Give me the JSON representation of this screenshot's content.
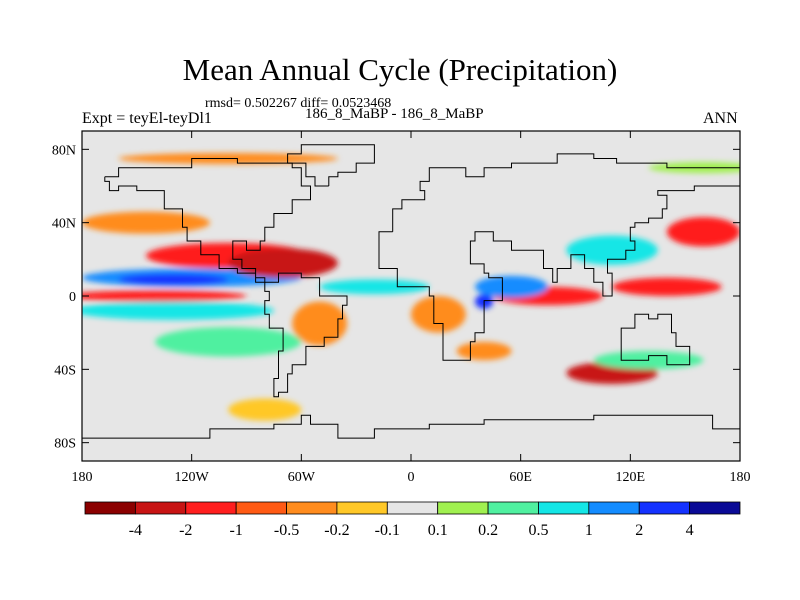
{
  "title": "Mean Annual Cycle (Precipitation)",
  "stats": "rmsd= 0.502267 diff= 0.0523468",
  "left_label": "Expt = teyEl-teyDl1",
  "center_label": "186_8_MaBP - 186_8_MaBP",
  "right_label": "ANN",
  "chart_data": {
    "type": "heatmap",
    "title": "Mean Annual Cycle (Precipitation)",
    "projection": "cylindrical equidistant",
    "xlim": [
      -180,
      180
    ],
    "ylim": [
      -90,
      90
    ],
    "x_ticks": [
      {
        "value": -180,
        "label": "180"
      },
      {
        "value": -120,
        "label": "120W"
      },
      {
        "value": -60,
        "label": "60W"
      },
      {
        "value": 0,
        "label": "0"
      },
      {
        "value": 60,
        "label": "60E"
      },
      {
        "value": 120,
        "label": "120E"
      },
      {
        "value": 180,
        "label": "180"
      }
    ],
    "y_ticks": [
      {
        "value": 80,
        "label": "80N"
      },
      {
        "value": 40,
        "label": "40N"
      },
      {
        "value": 0,
        "label": "0"
      },
      {
        "value": -40,
        "label": "40S"
      },
      {
        "value": -80,
        "label": "80S"
      }
    ],
    "colorbar": {
      "labels": [
        "-4",
        "-2",
        "-1",
        "-0.5",
        "-0.2",
        "-0.1",
        "0.1",
        "0.2",
        "0.5",
        "1",
        "2",
        "4"
      ],
      "colors": [
        "#8b0000",
        "#c81414",
        "#ff1e1e",
        "#ff5a14",
        "#ff8c1e",
        "#ffc828",
        "#e6e6e6",
        "#a0f050",
        "#50f0a0",
        "#14e6e6",
        "#148cff",
        "#1432ff",
        "#0a0a96"
      ]
    },
    "features": [
      {
        "name": "tropical-pacific-north-positive",
        "lon": -120,
        "lat": 10,
        "dlon": 60,
        "dlat": 5,
        "level": 10
      },
      {
        "name": "tropical-pacific-north-core",
        "lon": -130,
        "lat": 9,
        "dlon": 30,
        "dlat": 3,
        "level": 11
      },
      {
        "name": "equatorial-pacific-negative",
        "lon": -140,
        "lat": 0,
        "dlon": 50,
        "dlat": 3,
        "level": 2
      },
      {
        "name": "south-pacific-positive",
        "lon": -130,
        "lat": -8,
        "dlon": 55,
        "dlat": 5,
        "level": 9
      },
      {
        "name": "north-pacific-negative",
        "lon": -100,
        "lat": 22,
        "dlon": 45,
        "dlat": 7,
        "level": 2
      },
      {
        "name": "central-america-negative",
        "lon": -70,
        "lat": 18,
        "dlon": 30,
        "dlat": 8,
        "level": 1
      },
      {
        "name": "mid-latitude-pacific-orange",
        "lon": -145,
        "lat": 40,
        "dlon": 35,
        "dlat": 6,
        "level": 4
      },
      {
        "name": "atlantic-itcz-positive",
        "lon": -20,
        "lat": 5,
        "dlon": 30,
        "dlat": 4,
        "level": 9
      },
      {
        "name": "south-america-negative",
        "lon": -50,
        "lat": -15,
        "dlon": 15,
        "dlat": 12,
        "level": 4
      },
      {
        "name": "africa-negative",
        "lon": 15,
        "lat": -10,
        "dlon": 15,
        "dlat": 10,
        "level": 4
      },
      {
        "name": "indian-ocean-negative",
        "lon": 75,
        "lat": 0,
        "dlon": 30,
        "dlat": 5,
        "level": 2
      },
      {
        "name": "indian-ocean-positive",
        "lon": 55,
        "lat": 5,
        "dlon": 20,
        "dlat": 6,
        "level": 10
      },
      {
        "name": "arabian-sea-core",
        "lon": 40,
        "lat": -3,
        "dlon": 5,
        "dlat": 4,
        "level": 11
      },
      {
        "name": "south-indian-negative",
        "lon": 110,
        "lat": -42,
        "dlon": 25,
        "dlat": 6,
        "level": 1
      },
      {
        "name": "west-pacific-negative",
        "lon": 140,
        "lat": 5,
        "dlon": 30,
        "dlat": 5,
        "level": 2
      },
      {
        "name": "north-pacific-west-negative",
        "lon": 160,
        "lat": 35,
        "dlon": 20,
        "dlat": 8,
        "level": 2
      },
      {
        "name": "east-asia-positive",
        "lon": 110,
        "lat": 25,
        "dlon": 25,
        "dlat": 8,
        "level": 9
      },
      {
        "name": "south-pacific-east-positive",
        "lon": -100,
        "lat": -25,
        "dlon": 40,
        "dlat": 8,
        "level": 8
      },
      {
        "name": "southern-ocean-yellow",
        "lon": -80,
        "lat": -62,
        "dlon": 20,
        "dlat": 6,
        "level": 5
      },
      {
        "name": "southern-ocean-positive",
        "lon": 130,
        "lat": -35,
        "dlon": 30,
        "dlat": 5,
        "level": 8
      },
      {
        "name": "southern-ocean-orange",
        "lon": 40,
        "lat": -30,
        "dlon": 15,
        "dlat": 5,
        "level": 4
      },
      {
        "name": "arctic-band-orange",
        "lon": -100,
        "lat": 75,
        "dlon": 60,
        "dlat": 3,
        "level": 4
      },
      {
        "name": "arctic-band-green",
        "lon": 160,
        "lat": 70,
        "dlon": 30,
        "dlat": 3,
        "level": 7
      }
    ]
  }
}
